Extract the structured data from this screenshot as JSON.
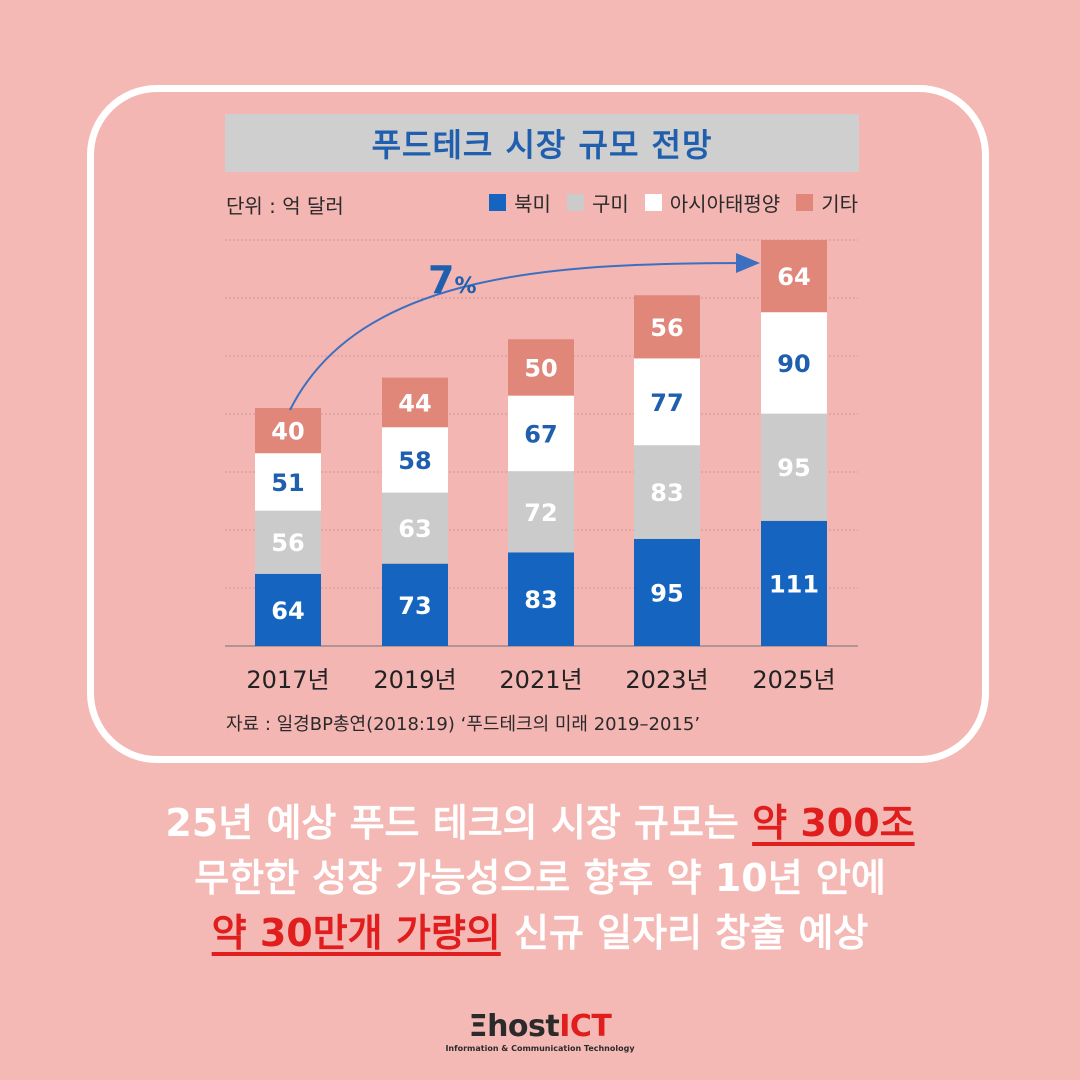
{
  "chart_data": {
    "type": "bar",
    "stacked": true,
    "title": "푸드테크 시장 규모 전망",
    "unit_label": "단위 : 억 달러",
    "categories": [
      "2017년",
      "2019년",
      "2021년",
      "2023년",
      "2025년"
    ],
    "series": [
      {
        "name": "북미",
        "color": "#1565c0",
        "label_color": "#ffffff",
        "values": [
          64,
          73,
          83,
          95,
          111
        ]
      },
      {
        "name": "구미",
        "color": "#cbcbcb",
        "label_color": "#ffffff",
        "values": [
          56,
          63,
          72,
          83,
          95
        ]
      },
      {
        "name": "아시아태평양",
        "color": "#ffffff",
        "label_color": "#1f5fae",
        "values": [
          51,
          58,
          67,
          77,
          90
        ]
      },
      {
        "name": "기타",
        "color": "#e0877a",
        "label_color": "#ffffff",
        "values": [
          40,
          44,
          50,
          56,
          64
        ]
      }
    ],
    "ylim": [
      0,
      360
    ],
    "grid": true,
    "annotation": "7%",
    "legend_position": "top-right",
    "source": "자료 : 일경BP총연(2018:19) ‘푸드테크의 미래 2019–2015’"
  },
  "caption": {
    "line1_prefix": "25년 예상 푸드 테크의 시장 규모는 ",
    "line1_highlight": "약 300조",
    "line2": "무한한 성장 가능성으로 향후 약 10년 안에",
    "line3_highlight": "약 30만개 가량의",
    "line3_suffix": " 신규 일자리 창출 예상"
  },
  "logo": {
    "prefix": "Ξhost",
    "suffix": "ICT",
    "tagline": "Information & Communication Technology"
  },
  "colors": {
    "background": "#f5b9b5",
    "highlight": "#e01e1e",
    "title_text": "#1f5fae"
  }
}
